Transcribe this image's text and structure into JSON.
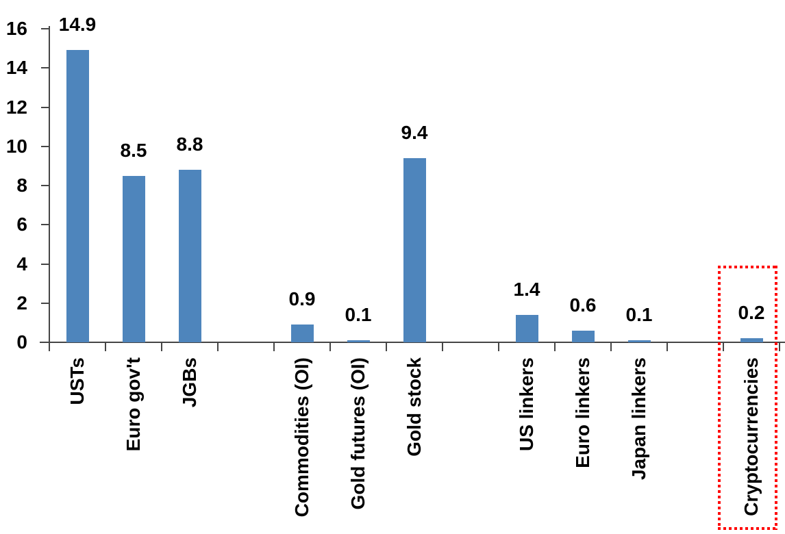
{
  "chart_data": {
    "type": "bar",
    "title": "",
    "xlabel": "",
    "ylabel": "",
    "categories": [
      "USTs",
      "Euro gov't",
      "JGBs",
      "Commodities (OI)",
      "Gold futures (OI)",
      "Gold stock",
      "US linkers",
      "Euro linkers",
      "Japan linkers",
      "Cryptocurrencies"
    ],
    "values": [
      14.9,
      8.5,
      8.8,
      0.9,
      0.1,
      9.4,
      1.4,
      0.6,
      0.1,
      0.2
    ],
    "data_labels": [
      "14.9",
      "8.5",
      "8.8",
      "0.9",
      "0.1",
      "9.4",
      "1.4",
      "0.6",
      "0.1",
      "0.2"
    ],
    "slot_indices": [
      0,
      1,
      2,
      4,
      5,
      6,
      8,
      9,
      10,
      12
    ],
    "total_slots": 13,
    "y_axis": {
      "min": 0,
      "max": 16,
      "tick_step": 2,
      "tick_labels": [
        "0",
        "2",
        "4",
        "6",
        "8",
        "10",
        "12",
        "14",
        "16"
      ]
    },
    "grid": "off",
    "legend": "none",
    "data_label_position": "outside-end",
    "bar_color": "#4E85BC",
    "axis_color": "#454545",
    "text_color": "#000000",
    "highlight": {
      "category": "Cryptocurrencies",
      "style": "dotted-box",
      "color": "#FF0000"
    }
  }
}
